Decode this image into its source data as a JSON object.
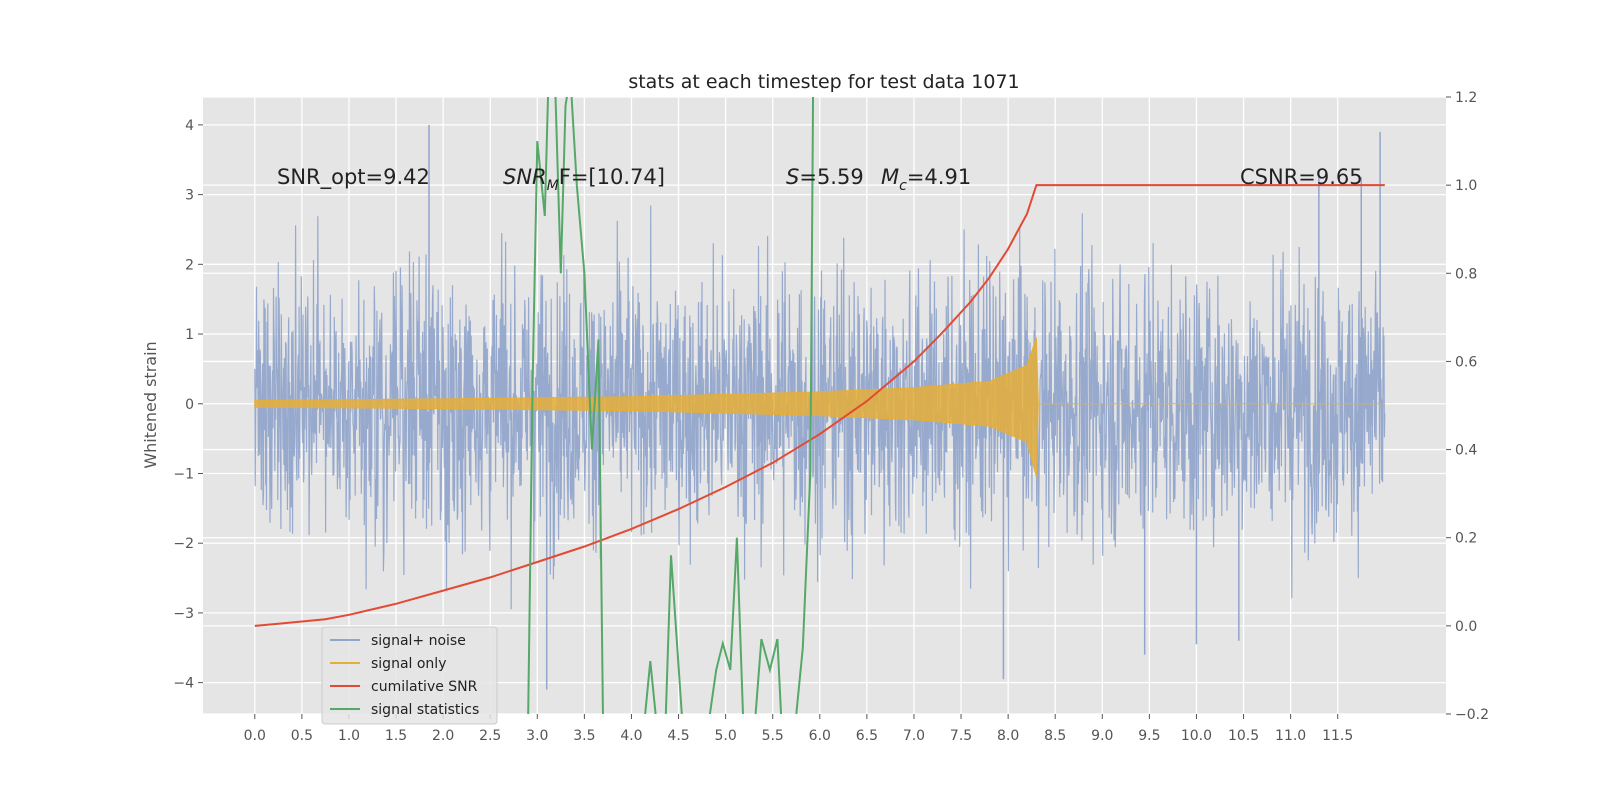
{
  "chart_data": {
    "type": "line",
    "title": "stats at each timestep for test data 1071",
    "ylabel": "Whitened strain",
    "ylabel_right": "",
    "xlim": [
      -0.55,
      12.65
    ],
    "ylim": [
      -4.45,
      4.4
    ],
    "ylim_right": [
      -0.2,
      1.2
    ],
    "x_ticks": [
      0.0,
      0.5,
      1.0,
      1.5,
      2.0,
      2.5,
      3.0,
      3.5,
      4.0,
      4.5,
      5.0,
      5.5,
      6.0,
      6.5,
      7.0,
      7.5,
      8.0,
      8.5,
      9.0,
      9.5,
      10.0,
      10.5,
      11.0,
      11.5
    ],
    "x_tick_labels": [
      "0.0",
      "0.5",
      "1.0",
      "1.5",
      "2.0",
      "2.5",
      "3.0",
      "3.5",
      "4.0",
      "4.5",
      "5.0",
      "5.5",
      "6.0",
      "6.5",
      "7.0",
      "7.5",
      "8.0",
      "8.5",
      "9.0",
      "9.5",
      "10.0",
      "10.5",
      "11.0",
      "11.5"
    ],
    "y_ticks": [
      -4,
      -3,
      -2,
      -1,
      0,
      1,
      2,
      3,
      4
    ],
    "y_tick_labels": [
      "−4",
      "−3",
      "−2",
      "−1",
      "0",
      "1",
      "2",
      "3",
      "4"
    ],
    "y_right_ticks": [
      -0.2,
      0.0,
      0.2,
      0.4,
      0.6,
      0.8,
      1.0,
      1.2
    ],
    "y_right_tick_labels": [
      "−0.2",
      "0.0",
      "0.2",
      "0.4",
      "0.6",
      "0.8",
      "1.0",
      "1.2"
    ],
    "grid": true,
    "legend_position": "lower-left",
    "annotations": {
      "snr_opt": "SNR_opt=9.42",
      "snr_mf_sym": "SNR",
      "snr_mf_sub": "M",
      "snr_mf_rest": "F=[10.74]",
      "s_sym": "S",
      "s_rest": "=5.59",
      "mc_sym": "M",
      "mc_sub": "c",
      "mc_rest": "=4.91",
      "csnr": "CSNR=9.65"
    },
    "series": [
      {
        "name": "signal+ noise",
        "color": "#92a6cb",
        "axis": "left",
        "x_range": [
          0.0,
          12.0
        ],
        "typical_envelope": [
          -2.1,
          2.1
        ],
        "max": 4.0,
        "min": -4.1,
        "spikes": [
          {
            "x": 1.85,
            "y": 4.0
          },
          {
            "x": 11.95,
            "y": 3.9
          },
          {
            "x": 3.1,
            "y": -4.1
          },
          {
            "x": 7.95,
            "y": -3.95
          },
          {
            "x": 9.45,
            "y": -3.6
          },
          {
            "x": 10.0,
            "y": -3.45
          },
          {
            "x": 10.45,
            "y": -3.4
          },
          {
            "x": 11.3,
            "y": 3.3
          },
          {
            "x": 11.75,
            "y": 3.25
          }
        ]
      },
      {
        "name": "signal only",
        "color": "#e5ae38",
        "axis": "left",
        "merger_time": 8.3,
        "amplitude_envelope": [
          {
            "x": 0.0,
            "y": 0.05
          },
          {
            "x": 2.0,
            "y": 0.07
          },
          {
            "x": 4.0,
            "y": 0.1
          },
          {
            "x": 6.0,
            "y": 0.17
          },
          {
            "x": 7.0,
            "y": 0.23
          },
          {
            "x": 7.8,
            "y": 0.32
          },
          {
            "x": 8.2,
            "y": 0.55
          },
          {
            "x": 8.3,
            "y": 0.95
          },
          {
            "x": 8.32,
            "y": 0.0
          },
          {
            "x": 12.0,
            "y": 0.0
          }
        ]
      },
      {
        "name": "cumilative SNR",
        "color": "#e24a33",
        "axis": "right",
        "x": [
          0.0,
          0.25,
          0.5,
          0.75,
          1.0,
          1.5,
          2.0,
          2.5,
          3.0,
          3.5,
          4.0,
          4.5,
          5.0,
          5.5,
          6.0,
          6.5,
          7.0,
          7.3,
          7.6,
          7.8,
          8.0,
          8.1,
          8.2,
          8.3,
          9.0,
          10.0,
          11.0,
          12.0
        ],
        "y": [
          0.0,
          0.005,
          0.01,
          0.015,
          0.025,
          0.05,
          0.08,
          0.11,
          0.145,
          0.18,
          0.22,
          0.265,
          0.315,
          0.37,
          0.435,
          0.51,
          0.6,
          0.665,
          0.735,
          0.79,
          0.855,
          0.895,
          0.935,
          1.0,
          1.0,
          1.0,
          1.0,
          1.0
        ]
      },
      {
        "name": "signal statistics",
        "color": "#55a868",
        "axis": "right",
        "x": [
          2.9,
          2.95,
          3.0,
          3.08,
          3.12,
          3.18,
          3.25,
          3.3,
          3.35,
          3.42,
          3.5,
          3.58,
          3.65,
          3.7,
          3.8,
          3.9,
          4.1,
          4.2,
          4.28,
          4.35,
          4.42,
          4.55,
          4.7,
          4.8,
          4.9,
          4.97,
          5.05,
          5.12,
          5.2,
          5.3,
          5.38,
          5.47,
          5.55,
          5.6,
          5.68,
          5.75,
          5.82,
          5.9,
          5.93
        ],
        "y": [
          -0.25,
          0.55,
          1.1,
          0.93,
          1.25,
          1.3,
          0.8,
          1.18,
          1.25,
          1.0,
          0.8,
          0.4,
          0.65,
          -0.25,
          -0.35,
          -0.35,
          -0.3,
          -0.08,
          -0.25,
          -0.3,
          0.16,
          -0.25,
          -0.3,
          -0.25,
          -0.1,
          -0.04,
          -0.1,
          0.2,
          -0.3,
          -0.25,
          -0.03,
          -0.1,
          -0.03,
          -0.25,
          -0.3,
          -0.2,
          -0.05,
          0.35,
          1.25
        ]
      }
    ]
  }
}
